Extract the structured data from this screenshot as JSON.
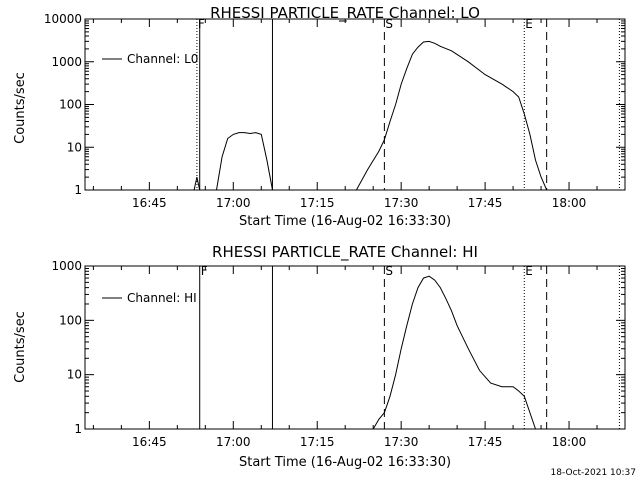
{
  "colors": {
    "background": "#ffffff",
    "foreground": "#000000"
  },
  "footer": {
    "timestamp": "18-Oct-2021 10:37"
  },
  "chart_data": [
    {
      "type": "line",
      "title": "RHESSI PARTICLE_RATE Channel: LO",
      "xlabel": "Start Time (16-Aug-02 16:33:30)",
      "ylabel": "Counts/sec",
      "yscale": "log",
      "ylim": [
        1,
        10000
      ],
      "yticks": [
        "1",
        "10",
        "100",
        "1000",
        "10000"
      ],
      "xlim": [
        "16:33:30",
        "18:10:00"
      ],
      "xticks": [
        "16:45",
        "17:00",
        "17:15",
        "17:30",
        "17:45",
        "18:00"
      ],
      "legend": {
        "placement": "top-left",
        "entries": [
          "Channel: L0"
        ]
      },
      "grid": false,
      "markers": [
        {
          "label": "F",
          "time": "16:53:30",
          "style": "dotted"
        },
        {
          "label": "",
          "time": "16:54:00",
          "style": "solid"
        },
        {
          "label": "",
          "time": "17:07:00",
          "style": "solid"
        },
        {
          "label": "S",
          "time": "17:27:00",
          "style": "dashed"
        },
        {
          "label": "E",
          "time": "17:52:00",
          "style": "dotted"
        },
        {
          "label": "",
          "time": "17:56:00",
          "style": "dashed"
        },
        {
          "label": "",
          "time": "18:09:00",
          "style": "dotted"
        }
      ],
      "series": [
        {
          "name": "Channel: L0",
          "segments": [
            {
              "x": [
                "16:53:00",
                "16:53:30",
                "16:54:00"
              ],
              "y": [
                1,
                2,
                1
              ]
            },
            {
              "x": [
                "16:57:00",
                "16:58:00",
                "16:59:00",
                "17:00:00",
                "17:01:00",
                "17:02:00",
                "17:03:00",
                "17:04:00",
                "17:05:00",
                "17:06:00",
                "17:07:00"
              ],
              "y": [
                1,
                6,
                16,
                20,
                22,
                22,
                21,
                22,
                20,
                5,
                1
              ]
            },
            {
              "x": [
                "17:22:00",
                "17:24:00",
                "17:26:00",
                "17:27:00",
                "17:28:00",
                "17:29:00",
                "17:30:00",
                "17:31:00",
                "17:32:00",
                "17:33:00",
                "17:34:00",
                "17:35:00",
                "17:36:00",
                "17:37:00",
                "17:39:00",
                "17:42:00",
                "17:45:00",
                "17:48:00",
                "17:50:00",
                "17:51:00",
                "17:52:00",
                "17:53:00",
                "17:54:00",
                "17:55:00",
                "17:56:00"
              ],
              "y": [
                1,
                3,
                8,
                15,
                40,
                100,
                300,
                700,
                1500,
                2200,
                2900,
                3000,
                2700,
                2300,
                1800,
                1000,
                500,
                300,
                200,
                150,
                60,
                20,
                5,
                2,
                1
              ]
            }
          ]
        }
      ]
    },
    {
      "type": "line",
      "title": "RHESSI PARTICLE_RATE Channel: HI",
      "xlabel": "Start Time (16-Aug-02 16:33:30)",
      "ylabel": "Counts/sec",
      "yscale": "log",
      "ylim": [
        1,
        1000
      ],
      "yticks": [
        "1",
        "10",
        "100",
        "1000"
      ],
      "xlim": [
        "16:33:30",
        "18:10:00"
      ],
      "xticks": [
        "16:45",
        "17:00",
        "17:15",
        "17:30",
        "17:45",
        "18:00"
      ],
      "legend": {
        "placement": "top-left",
        "entries": [
          "Channel: HI"
        ]
      },
      "grid": false,
      "markers": [
        {
          "label": "F",
          "time": "16:54:00",
          "style": "solid"
        },
        {
          "label": "",
          "time": "17:07:00",
          "style": "solid"
        },
        {
          "label": "S",
          "time": "17:27:00",
          "style": "dashed"
        },
        {
          "label": "E",
          "time": "17:52:00",
          "style": "dotted"
        },
        {
          "label": "",
          "time": "17:56:00",
          "style": "dashed"
        },
        {
          "label": "",
          "time": "18:09:00",
          "style": "dotted"
        }
      ],
      "series": [
        {
          "name": "Channel: HI",
          "segments": [
            {
              "x": [
                "17:25:00",
                "17:26:00",
                "17:27:00",
                "17:28:00",
                "17:29:00",
                "17:30:00",
                "17:31:00",
                "17:32:00",
                "17:33:00",
                "17:34:00",
                "17:35:00",
                "17:36:00",
                "17:37:00",
                "17:38:00",
                "17:39:00",
                "17:40:00",
                "17:42:00",
                "17:44:00",
                "17:46:00",
                "17:48:00",
                "17:50:00",
                "17:51:00",
                "17:52:00",
                "17:53:00",
                "17:54:00"
              ],
              "y": [
                1,
                1.5,
                2,
                4,
                10,
                30,
                80,
                200,
                400,
                600,
                650,
                550,
                400,
                250,
                150,
                80,
                30,
                12,
                7,
                6,
                6,
                5,
                4,
                2,
                1
              ]
            }
          ]
        }
      ]
    }
  ]
}
